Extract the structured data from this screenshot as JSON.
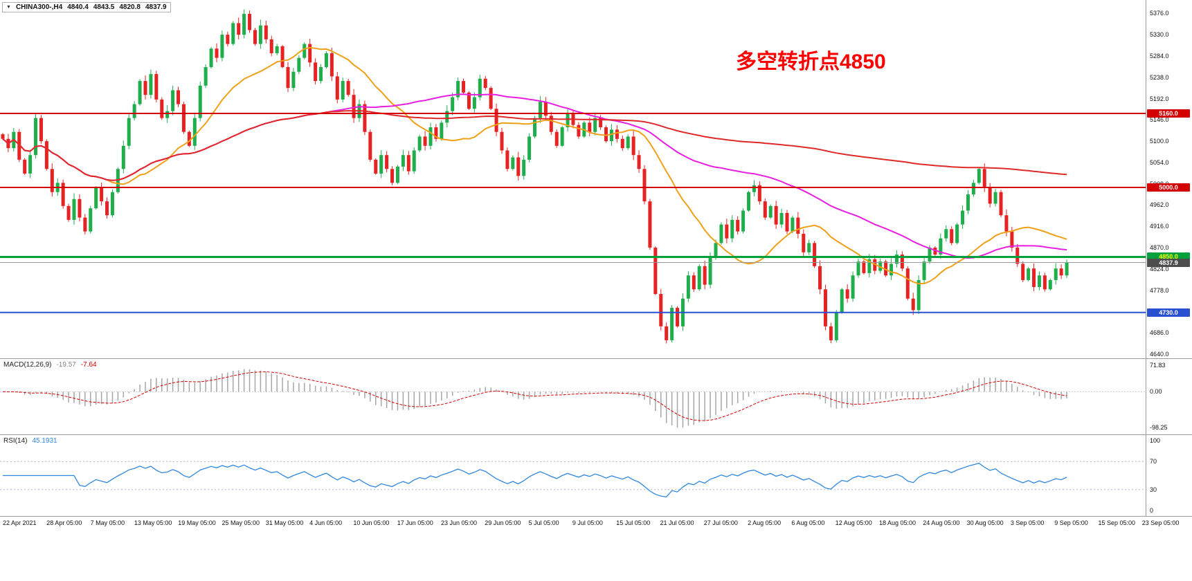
{
  "header": {
    "dropdown_icon": "▼",
    "symbol_period": "CHINA300-,H4",
    "open": "4840.4",
    "high": "4843.5",
    "low": "4820.8",
    "close": "4837.9"
  },
  "annotation": {
    "text": "多空转折点4850",
    "color": "#ff0000"
  },
  "main_chart": {
    "price_ticks": [
      "5376.0",
      "5330.0",
      "5284.0",
      "5238.0",
      "5192.0",
      "5146.0",
      "5100.0",
      "5054.0",
      "5008.0",
      "4962.0",
      "4916.0",
      "4870.0",
      "4824.0",
      "4778.0",
      "4732.0",
      "4686.0",
      "4640.0"
    ],
    "level_tags": [
      {
        "label": "5160.0",
        "price": 5160,
        "bg": "#d40000",
        "fg": "#ffffff"
      },
      {
        "label": "5000.0",
        "price": 5000,
        "bg": "#d40000",
        "fg": "#ffffff"
      },
      {
        "label": "4850.0",
        "price": 4850,
        "bg": "#00a03c",
        "fg": "#ffff00"
      },
      {
        "label": "4730.0",
        "price": 4730,
        "bg": "#2850d0",
        "fg": "#ffffff"
      }
    ],
    "current_tag": {
      "label": "4837.9",
      "price": 4837.9,
      "bg": "#4d4d4d",
      "fg": "#ffffff"
    }
  },
  "macd_panel": {
    "name": "MACD(12,26,9)",
    "value_main": "-19.57",
    "value_signal": "-7.64",
    "axis": [
      "71.83",
      "0.00",
      "-98.25"
    ]
  },
  "rsi_panel": {
    "name": "RSI(14)",
    "value": "45.1931",
    "axis": [
      "100",
      "70",
      "30",
      "0"
    ]
  },
  "time_axis": [
    "22 Apr 2021",
    "28 Apr 05:00",
    "7 May 05:00",
    "13 May 05:00",
    "19 May 05:00",
    "25 May 05:00",
    "31 May 05:00",
    "4 Jun 05:00",
    "10 Jun 05:00",
    "17 Jun 05:00",
    "23 Jun 05:00",
    "29 Jun 05:00",
    "5 Jul 05:00",
    "9 Jul 05:00",
    "15 Jul 05:00",
    "21 Jul 05:00",
    "27 Jul 05:00",
    "2 Aug 05:00",
    "6 Aug 05:00",
    "12 Aug 05:00",
    "18 Aug 05:00",
    "24 Aug 05:00",
    "30 Aug 05:00",
    "3 Sep 05:00",
    "9 Sep 05:00",
    "15 Sep 05:00",
    "23 Sep 05:00"
  ],
  "colors": {
    "up": "#1fae4b",
    "down": "#e62222",
    "ma_fast": "#f0a018",
    "ma_mid": "#e81ee0",
    "ma_slow": "#e02828",
    "line_red": "#d40000",
    "line_green": "#00a03c",
    "line_blue": "#2850d0",
    "current_line": "#9a9a9a",
    "macd_hist": "#a6a6a6",
    "macd_signal": "#d40000",
    "rsi_line": "#2e86e0",
    "rsi_levels": "#aab4c8",
    "background": "#ffffff"
  },
  "chart_data": {
    "type": "candlestick",
    "symbol": "CHINA300-",
    "timeframe": "H4",
    "ohlc_display": {
      "open": 4840.4,
      "high": 4843.5,
      "low": 4820.8,
      "close": 4837.9
    },
    "y_axis": {
      "min": 4640,
      "max": 5396,
      "tick_step": 46
    },
    "first_open": 5115,
    "closes": [
      5105,
      5085,
      5120,
      5060,
      5030,
      5070,
      5150,
      5100,
      5040,
      4990,
      5010,
      4960,
      4930,
      4975,
      4935,
      4905,
      4955,
      5000,
      4970,
      4940,
      4990,
      5040,
      5090,
      5150,
      5180,
      5230,
      5200,
      5245,
      5190,
      5150,
      5165,
      5210,
      5180,
      5120,
      5090,
      5150,
      5220,
      5260,
      5300,
      5280,
      5330,
      5310,
      5355,
      5330,
      5375,
      5340,
      5310,
      5350,
      5320,
      5290,
      5305,
      5260,
      5215,
      5250,
      5280,
      5310,
      5270,
      5230,
      5260,
      5290,
      5240,
      5190,
      5230,
      5200,
      5150,
      5180,
      5120,
      5060,
      5030,
      5070,
      5040,
      5010,
      5045,
      5070,
      5035,
      5080,
      5110,
      5090,
      5130,
      5105,
      5140,
      5165,
      5195,
      5230,
      5205,
      5170,
      5195,
      5235,
      5215,
      5170,
      5120,
      5080,
      5040,
      5065,
      5025,
      5060,
      5110,
      5150,
      5185,
      5155,
      5120,
      5090,
      5130,
      5160,
      5135,
      5110,
      5140,
      5120,
      5150,
      5130,
      5100,
      5125,
      5105,
      5085,
      5110,
      5070,
      5040,
      4970,
      4870,
      4770,
      4700,
      4670,
      4740,
      4700,
      4760,
      4810,
      4780,
      4830,
      4790,
      4850,
      4880,
      4920,
      4890,
      4930,
      4905,
      4950,
      4990,
      5005,
      4970,
      4935,
      4960,
      4920,
      4945,
      4905,
      4935,
      4900,
      4860,
      4880,
      4830,
      4780,
      4700,
      4670,
      4730,
      4780,
      4760,
      4810,
      4840,
      4815,
      4845,
      4820,
      4840,
      4810,
      4835,
      4855,
      4825,
      4760,
      4735,
      4800,
      4840,
      4870,
      4855,
      4890,
      4910,
      4880,
      4920,
      4950,
      4985,
      5010,
      5040,
      5000,
      4965,
      4990,
      4940,
      4905,
      4870,
      4835,
      4800,
      4825,
      4785,
      4810,
      4780,
      4800,
      4825,
      4810,
      4837.9
    ],
    "moving_averages": [
      {
        "name": "ma-fast",
        "period": 20,
        "color": "#f0a018"
      },
      {
        "name": "ma-mid",
        "period": 60,
        "color": "#e81ee0"
      },
      {
        "name": "ma-slow",
        "period": 200,
        "color": "#e02828"
      }
    ],
    "horizontal_levels": [
      {
        "price": 5160,
        "color": "#d40000",
        "width": 2
      },
      {
        "price": 5000,
        "color": "#d40000",
        "width": 2
      },
      {
        "price": 4850,
        "color": "#00a03c",
        "width": 3
      },
      {
        "price": 4730,
        "color": "#2850d0",
        "width": 2
      }
    ],
    "current_price": 4837.9,
    "indicators": [
      {
        "name": "MACD",
        "fast": 12,
        "slow": 26,
        "signal": 9,
        "values_shown": [
          -19.57,
          -7.64
        ],
        "axis_range": [
          -98.25,
          71.83
        ]
      },
      {
        "name": "RSI",
        "period": 14,
        "value_shown": 45.1931,
        "levels": [
          70,
          30
        ],
        "range": [
          0,
          100
        ]
      }
    ]
  }
}
